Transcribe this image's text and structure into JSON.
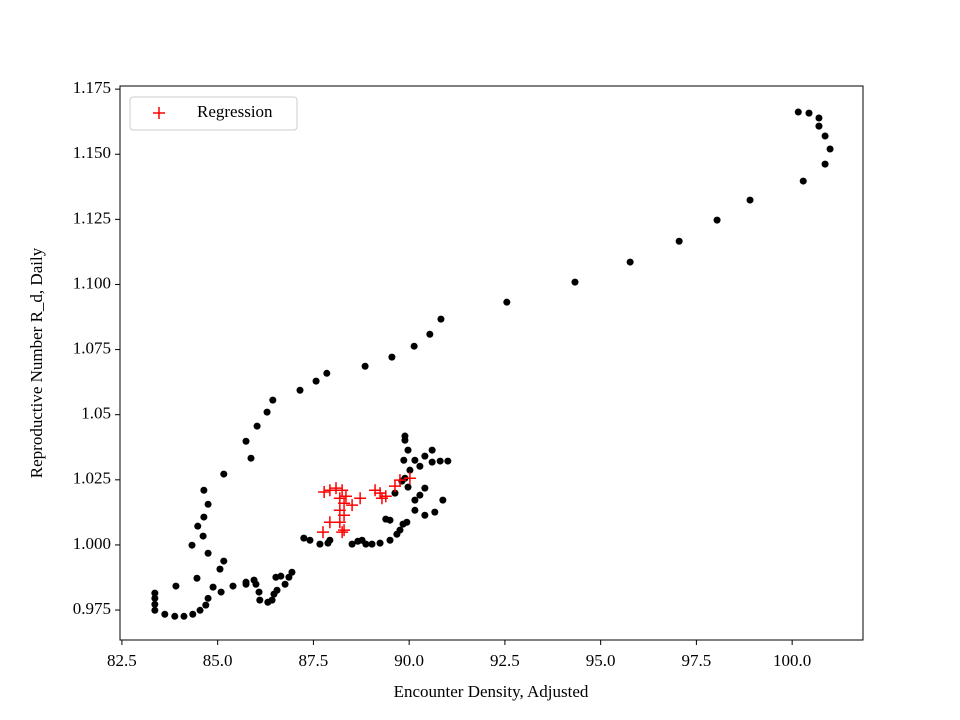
{
  "chart_data": {
    "type": "scatter",
    "xlabel": "Encounter Density, Adjusted",
    "ylabel": "Reproductive Number R_d, Daily",
    "xlim": [
      82.45,
      101.85
    ],
    "ylim": [
      0.9635,
      1.1762
    ],
    "xticks": [
      82.5,
      {
        "value": 85,
        "label": "85.0"
      },
      87.5,
      {
        "value": 90,
        "label": "90.0"
      },
      92.5,
      {
        "value": 95,
        "label": "95.0"
      },
      97.5,
      {
        "value": 100,
        "label": "100.0"
      }
    ],
    "yticks": [
      0.975,
      {
        "value": 1,
        "label": "1.000"
      },
      1.025,
      1.05,
      1.075,
      {
        "value": 1.1,
        "label": "1.100"
      },
      1.125,
      {
        "value": 1.15,
        "label": "1.150"
      },
      1.175
    ],
    "legend": "upper left",
    "series": [
      {
        "color": "#000000",
        "marker": "o",
        "x": [
          100.16,
          100.44,
          100.7,
          100.7,
          100.86,
          100.99,
          100.86,
          100.29,
          98.9,
          98.04,
          97.05,
          95.77,
          94.33,
          92.55,
          90.83,
          90.54,
          90.13,
          89.55,
          88.85,
          87.85,
          87.57,
          87.15,
          86.44,
          86.29,
          86.03,
          85.74,
          85.87,
          85.16,
          84.64,
          84.75,
          84.64,
          84.48,
          84.62,
          84.33,
          84.75,
          85.16,
          85.06,
          84.46,
          84.88,
          84.75,
          84.69,
          84.54,
          84.35,
          84.12,
          83.88,
          83.62,
          83.36,
          83.36,
          83.36,
          83.36,
          83.91,
          85.09,
          85.4,
          85.74,
          85.74,
          85.95,
          86.0,
          86.08,
          86.1,
          86.31,
          86.42,
          86.47,
          86.55,
          86.52,
          86.65,
          86.86,
          86.76,
          86.94,
          87.25,
          87.41,
          87.67,
          87.88,
          87.93,
          88.51,
          88.66,
          88.77,
          88.87,
          89.03,
          89.24,
          89.5,
          89.68,
          89.76,
          89.84,
          89.94,
          89.63,
          89.81,
          89.89,
          89.86,
          89.89,
          89.89,
          89.97,
          90.02,
          90.28,
          90.6,
          90.81,
          91.01,
          90.6,
          90.41,
          90.15,
          90.15,
          90.15,
          90.41,
          90.67,
          90.88,
          90.41,
          90.28,
          89.97,
          89.39,
          89.5
        ],
        "values": [
          1.1662,
          1.1658,
          1.1639,
          1.1608,
          1.157,
          1.152,
          1.1462,
          1.1397,
          1.1324,
          1.1247,
          1.1166,
          1.1086,
          1.1009,
          1.0932,
          1.0867,
          1.0809,
          1.0763,
          1.0721,
          1.0686,
          1.0659,
          1.0629,
          1.0594,
          1.0556,
          1.051,
          1.0456,
          1.0398,
          1.0333,
          1.0272,
          1.021,
          1.0156,
          1.0107,
          1.0072,
          1.0034,
          0.9999,
          0.9968,
          0.9938,
          0.9907,
          0.9872,
          0.9838,
          0.9795,
          0.9769,
          0.9749,
          0.9734,
          0.9726,
          0.9726,
          0.9734,
          0.9749,
          0.9772,
          0.9795,
          0.9815,
          0.9842,
          0.9819,
          0.9842,
          0.9849,
          0.9857,
          0.9865,
          0.9849,
          0.9819,
          0.9788,
          0.978,
          0.9788,
          0.9811,
          0.9826,
          0.9876,
          0.988,
          0.9876,
          0.9849,
          0.9895,
          1.0026,
          1.0018,
          1.0003,
          1.0007,
          1.0018,
          1.0003,
          1.0014,
          1.0018,
          1.0003,
          1.0003,
          1.0007,
          1.0018,
          1.0041,
          1.0057,
          1.008,
          1.0087,
          1.0199,
          1.0245,
          1.0256,
          1.0325,
          1.0402,
          1.0418,
          1.0364,
          1.0287,
          1.0302,
          1.0318,
          1.0322,
          1.0322,
          1.0364,
          1.0341,
          1.0325,
          1.0172,
          1.0133,
          1.0114,
          1.0126,
          1.0172,
          1.0218,
          1.0191,
          1.0222,
          1.0099,
          1.0095
        ]
      },
      {
        "name": "Regression",
        "color": "#ff0000",
        "marker": "+",
        "x": [
          87.75,
          87.93,
          87.78,
          87.93,
          88.09,
          88.25,
          88.35,
          88.19,
          88.3,
          88.19,
          88.3,
          88.19,
          88.3,
          88.25,
          88.51,
          88.72,
          89.11,
          89.24,
          89.29,
          89.39,
          89.63,
          89.76,
          90.02
        ],
        "values": [
          1.0049,
          1.0087,
          1.0203,
          1.021,
          1.0218,
          1.021,
          1.0187,
          1.0179,
          1.016,
          1.0133,
          1.0114,
          1.0087,
          1.0057,
          1.0049,
          1.0153,
          1.0179,
          1.021,
          1.0199,
          1.0179,
          1.0187,
          1.0226,
          1.0249,
          1.0256
        ]
      }
    ]
  }
}
